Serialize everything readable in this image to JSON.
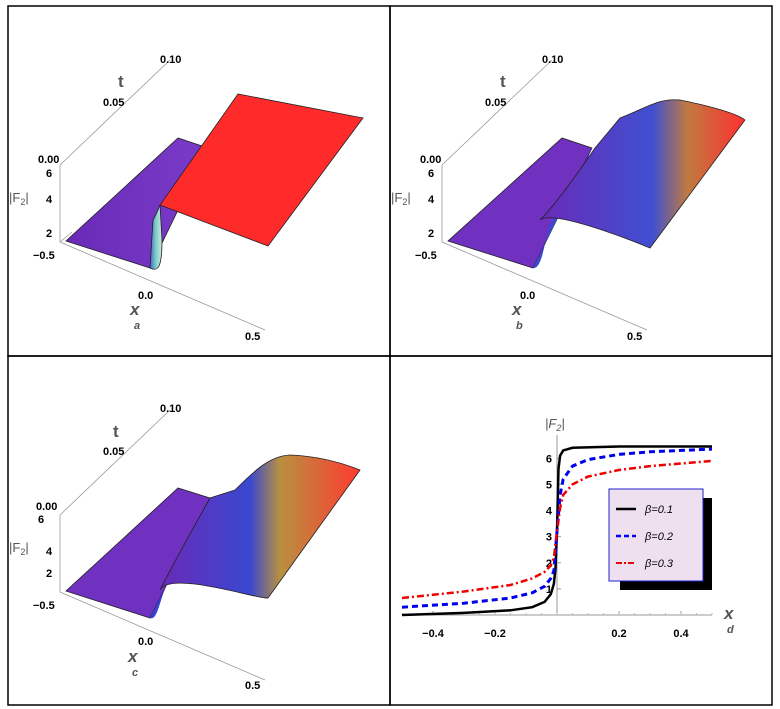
{
  "colors": {
    "purple": "#7a2fc0",
    "blue": "#2a44c8",
    "teal": "#6fb3b8",
    "orange": "#d8933a",
    "red": "#ff2b2b",
    "axis_text": "#555555",
    "beta1": "#000000",
    "beta2": "#0000ee",
    "beta3": "#ee0000",
    "legend_bg": "#efe0ef",
    "legend_border": "#2222cc"
  },
  "panels": [
    {
      "label": "a",
      "type": "surface3d",
      "t_label": "t",
      "t_ticks": [
        "0.10",
        "0.05",
        "0.00"
      ],
      "f_label": "|F",
      "f_sub": "2",
      "f_close": "|",
      "f_ticks": [
        "6",
        "4",
        "2"
      ],
      "x_label": "x",
      "x_ticks": [
        "−0.5",
        "0.0",
        "0.5"
      ]
    },
    {
      "label": "b",
      "type": "surface3d",
      "t_label": "t",
      "t_ticks": [
        "0.10",
        "0.05",
        "0.00"
      ],
      "f_label": "|F",
      "f_sub": "2",
      "f_close": "|",
      "f_ticks": [
        "6",
        "4",
        "2"
      ],
      "x_label": "x",
      "x_ticks": [
        "−0.5",
        "0.0",
        "0.5"
      ]
    },
    {
      "label": "c",
      "type": "surface3d",
      "t_label": "t",
      "t_ticks": [
        "0.10",
        "0.05",
        "0.00"
      ],
      "f_label": "|F",
      "f_sub": "2",
      "f_close": "|",
      "f_ticks": [
        "6",
        "4",
        "2"
      ],
      "x_label": "x",
      "x_ticks": [
        "−0.5",
        "0.0",
        "0.5"
      ]
    }
  ],
  "chart_data": {
    "type": "line",
    "panel_label": "d",
    "xlabel": "x",
    "ylabel_main": "|F",
    "ylabel_sub": "2",
    "ylabel_close": "|",
    "xlim": [
      -0.5,
      0.5
    ],
    "ylim": [
      0,
      6.7
    ],
    "x_ticks": [
      -0.4,
      -0.2,
      0.2,
      0.4
    ],
    "x_tick_labels": [
      "−0.4",
      "−0.2",
      "0.2",
      "0.4"
    ],
    "y_ticks": [
      1,
      2,
      3,
      4,
      5,
      6
    ],
    "y_tick_labels": [
      "1",
      "2",
      "3",
      "4",
      "5",
      "6"
    ],
    "legend_position": "center-right",
    "series": [
      {
        "name": "β=0.1",
        "style": "solid",
        "color": "#000000",
        "points": [
          [
            -0.5,
            0.0
          ],
          [
            -0.3,
            0.08
          ],
          [
            -0.15,
            0.18
          ],
          [
            -0.08,
            0.3
          ],
          [
            -0.04,
            0.5
          ],
          [
            -0.02,
            0.8
          ],
          [
            -0.01,
            1.2
          ],
          [
            -0.005,
            1.8
          ],
          [
            0.0,
            3.2
          ],
          [
            0.005,
            5.6
          ],
          [
            0.01,
            6.1
          ],
          [
            0.02,
            6.3
          ],
          [
            0.05,
            6.4
          ],
          [
            0.2,
            6.45
          ],
          [
            0.5,
            6.45
          ]
        ]
      },
      {
        "name": "β=0.2",
        "style": "dashed",
        "color": "#0000ee",
        "points": [
          [
            -0.5,
            0.3
          ],
          [
            -0.3,
            0.45
          ],
          [
            -0.15,
            0.65
          ],
          [
            -0.08,
            0.85
          ],
          [
            -0.04,
            1.1
          ],
          [
            -0.02,
            1.4
          ],
          [
            -0.01,
            1.7
          ],
          [
            0.0,
            3.2
          ],
          [
            0.01,
            4.6
          ],
          [
            0.02,
            5.2
          ],
          [
            0.05,
            5.7
          ],
          [
            0.1,
            5.95
          ],
          [
            0.2,
            6.15
          ],
          [
            0.3,
            6.25
          ],
          [
            0.5,
            6.35
          ]
        ]
      },
      {
        "name": "β=0.3",
        "style": "dashdot",
        "color": "#ee0000",
        "points": [
          [
            -0.5,
            0.65
          ],
          [
            -0.3,
            0.9
          ],
          [
            -0.15,
            1.15
          ],
          [
            -0.08,
            1.4
          ],
          [
            -0.04,
            1.65
          ],
          [
            -0.02,
            1.9
          ],
          [
            -0.01,
            2.2
          ],
          [
            0.0,
            3.2
          ],
          [
            0.01,
            4.1
          ],
          [
            0.02,
            4.6
          ],
          [
            0.05,
            5.0
          ],
          [
            0.1,
            5.3
          ],
          [
            0.2,
            5.55
          ],
          [
            0.3,
            5.7
          ],
          [
            0.5,
            5.9
          ]
        ]
      }
    ]
  }
}
